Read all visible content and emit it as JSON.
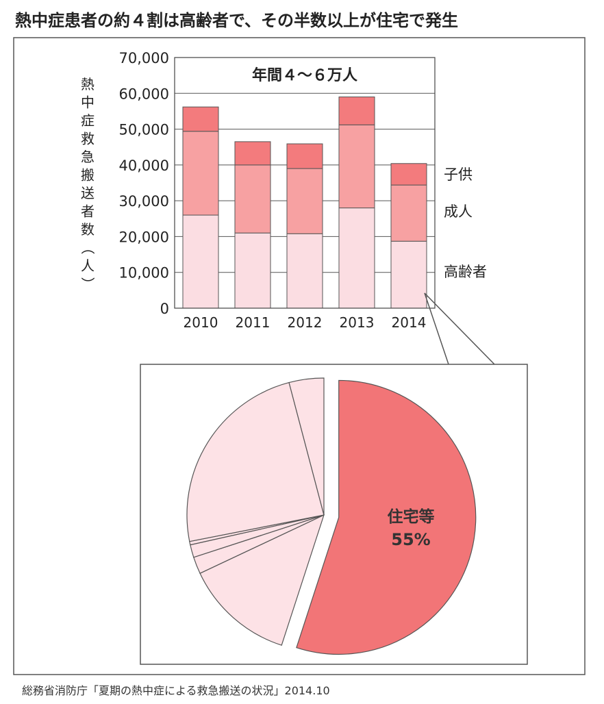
{
  "headline": "熱中症患者の約４割は高齢者で、その半数以上が住宅で発生",
  "source_note": "総務省消防庁「夏期の熱中症による救急搬送の状況」2014.10",
  "colors": {
    "elderly": "#fbdde2",
    "adult": "#f7a1a2",
    "child": "#f37b7d",
    "pie_highlight": "#f27577",
    "pie_other": "#fde2e6",
    "stroke": "#555555"
  },
  "chart_data": [
    {
      "type": "bar",
      "stacked": true,
      "title": "年間４～６万人",
      "ylabel": "熱中症救急搬送者数（人）",
      "ylim": [
        0,
        70000
      ],
      "yticks": [
        0,
        10000,
        20000,
        30000,
        40000,
        50000,
        60000,
        70000
      ],
      "ytick_labels": [
        "0",
        "10,000",
        "20,000",
        "30,000",
        "40,000",
        "50,000",
        "60,000",
        "70,000"
      ],
      "grid": true,
      "categories": [
        "2010",
        "2011",
        "2012",
        "2013",
        "2014"
      ],
      "series": [
        {
          "name": "高齢者",
          "values": [
            26000,
            21000,
            20800,
            28000,
            18700
          ]
        },
        {
          "name": "成人",
          "values": [
            23400,
            19000,
            18200,
            23200,
            15700
          ]
        },
        {
          "name": "子供",
          "values": [
            6800,
            6500,
            6900,
            7800,
            6000
          ]
        }
      ],
      "legend_placement": "right"
    },
    {
      "type": "pie",
      "applies_to": "2014",
      "slices": [
        {
          "label": "住宅等",
          "percent_label": "55%",
          "value": 55,
          "highlight": true
        },
        {
          "label": "",
          "value": 13
        },
        {
          "label": "",
          "value": 2
        },
        {
          "label": "",
          "value": 1.5
        },
        {
          "label": "",
          "value": 0.4
        },
        {
          "label": "",
          "value": 24
        },
        {
          "label": "",
          "value": 4.1
        }
      ]
    }
  ]
}
